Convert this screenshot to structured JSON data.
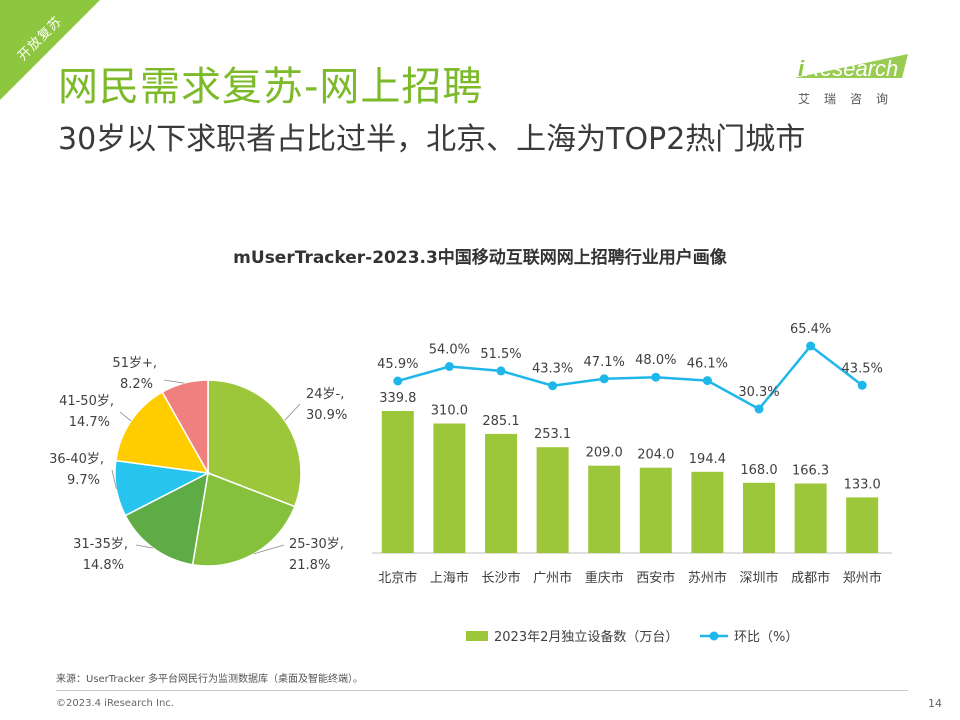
{
  "ribbon": {
    "text": "开放复苏",
    "color": "#8dc63f"
  },
  "header": {
    "title": "网民需求复苏-网上招聘",
    "subtitle": "30岁以下求职者占比过半，北京、上海为TOP2热门城市"
  },
  "logo": {
    "brand_i": "i",
    "brand": "Research",
    "sub": "艾瑞咨询",
    "accent": "#8dc63f"
  },
  "chart_data": [
    {
      "type": "pie",
      "title": "mUserTracker-2023.3中国移动互联网网上招聘行业用户画像",
      "slices": [
        {
          "label": "24岁-,",
          "value": 30.9,
          "value_label": "30.9%",
          "color": "#9dc73a"
        },
        {
          "label": "25-30岁,",
          "value": 21.8,
          "value_label": "21.8%",
          "color": "#86c13e"
        },
        {
          "label": "31-35岁,",
          "value": 14.8,
          "value_label": "14.8%",
          "color": "#5fab45"
        },
        {
          "label": "36-40岁,",
          "value": 9.7,
          "value_label": "9.7%",
          "color": "#27c4ef"
        },
        {
          "label": "41-50岁,",
          "value": 14.7,
          "value_label": "14.7%",
          "color": "#ffcc00"
        },
        {
          "label": "51岁+,",
          "value": 8.2,
          "value_label": "8.2%",
          "color": "#f08080"
        }
      ]
    },
    {
      "type": "bar",
      "categories": [
        "北京市",
        "上海市",
        "长沙市",
        "广州市",
        "重庆市",
        "西安市",
        "苏州市",
        "深圳市",
        "成都市",
        "郑州市"
      ],
      "series": [
        {
          "name": "2023年2月独立设备数（万台）",
          "type": "bar",
          "color": "#9dc73a",
          "values": [
            339.8,
            310.0,
            285.1,
            253.1,
            209.0,
            204.0,
            194.4,
            168.0,
            166.3,
            133.0
          ],
          "labels": [
            "339.8",
            "310.0",
            "285.1",
            "253.1",
            "209.0",
            "204.0",
            "194.4",
            "168.0",
            "166.3",
            "133.0"
          ]
        },
        {
          "name": "环比（%）",
          "type": "line",
          "color": "#1fb7ea",
          "values": [
            45.9,
            54.0,
            51.5,
            43.3,
            47.1,
            48.0,
            46.1,
            30.3,
            65.4,
            43.5
          ],
          "labels": [
            "45.9%",
            "54.0%",
            "51.5%",
            "43.3%",
            "47.1%",
            "48.0%",
            "46.1%",
            "30.3%",
            "65.4%",
            "43.5%"
          ]
        }
      ],
      "legend_position": "bottom"
    }
  ],
  "footer": {
    "source": "来源：UserTracker 多平台网民行为监测数据库（桌面及智能终端）。",
    "copyright": "©2023.4 iResearch Inc.",
    "page": "14"
  }
}
